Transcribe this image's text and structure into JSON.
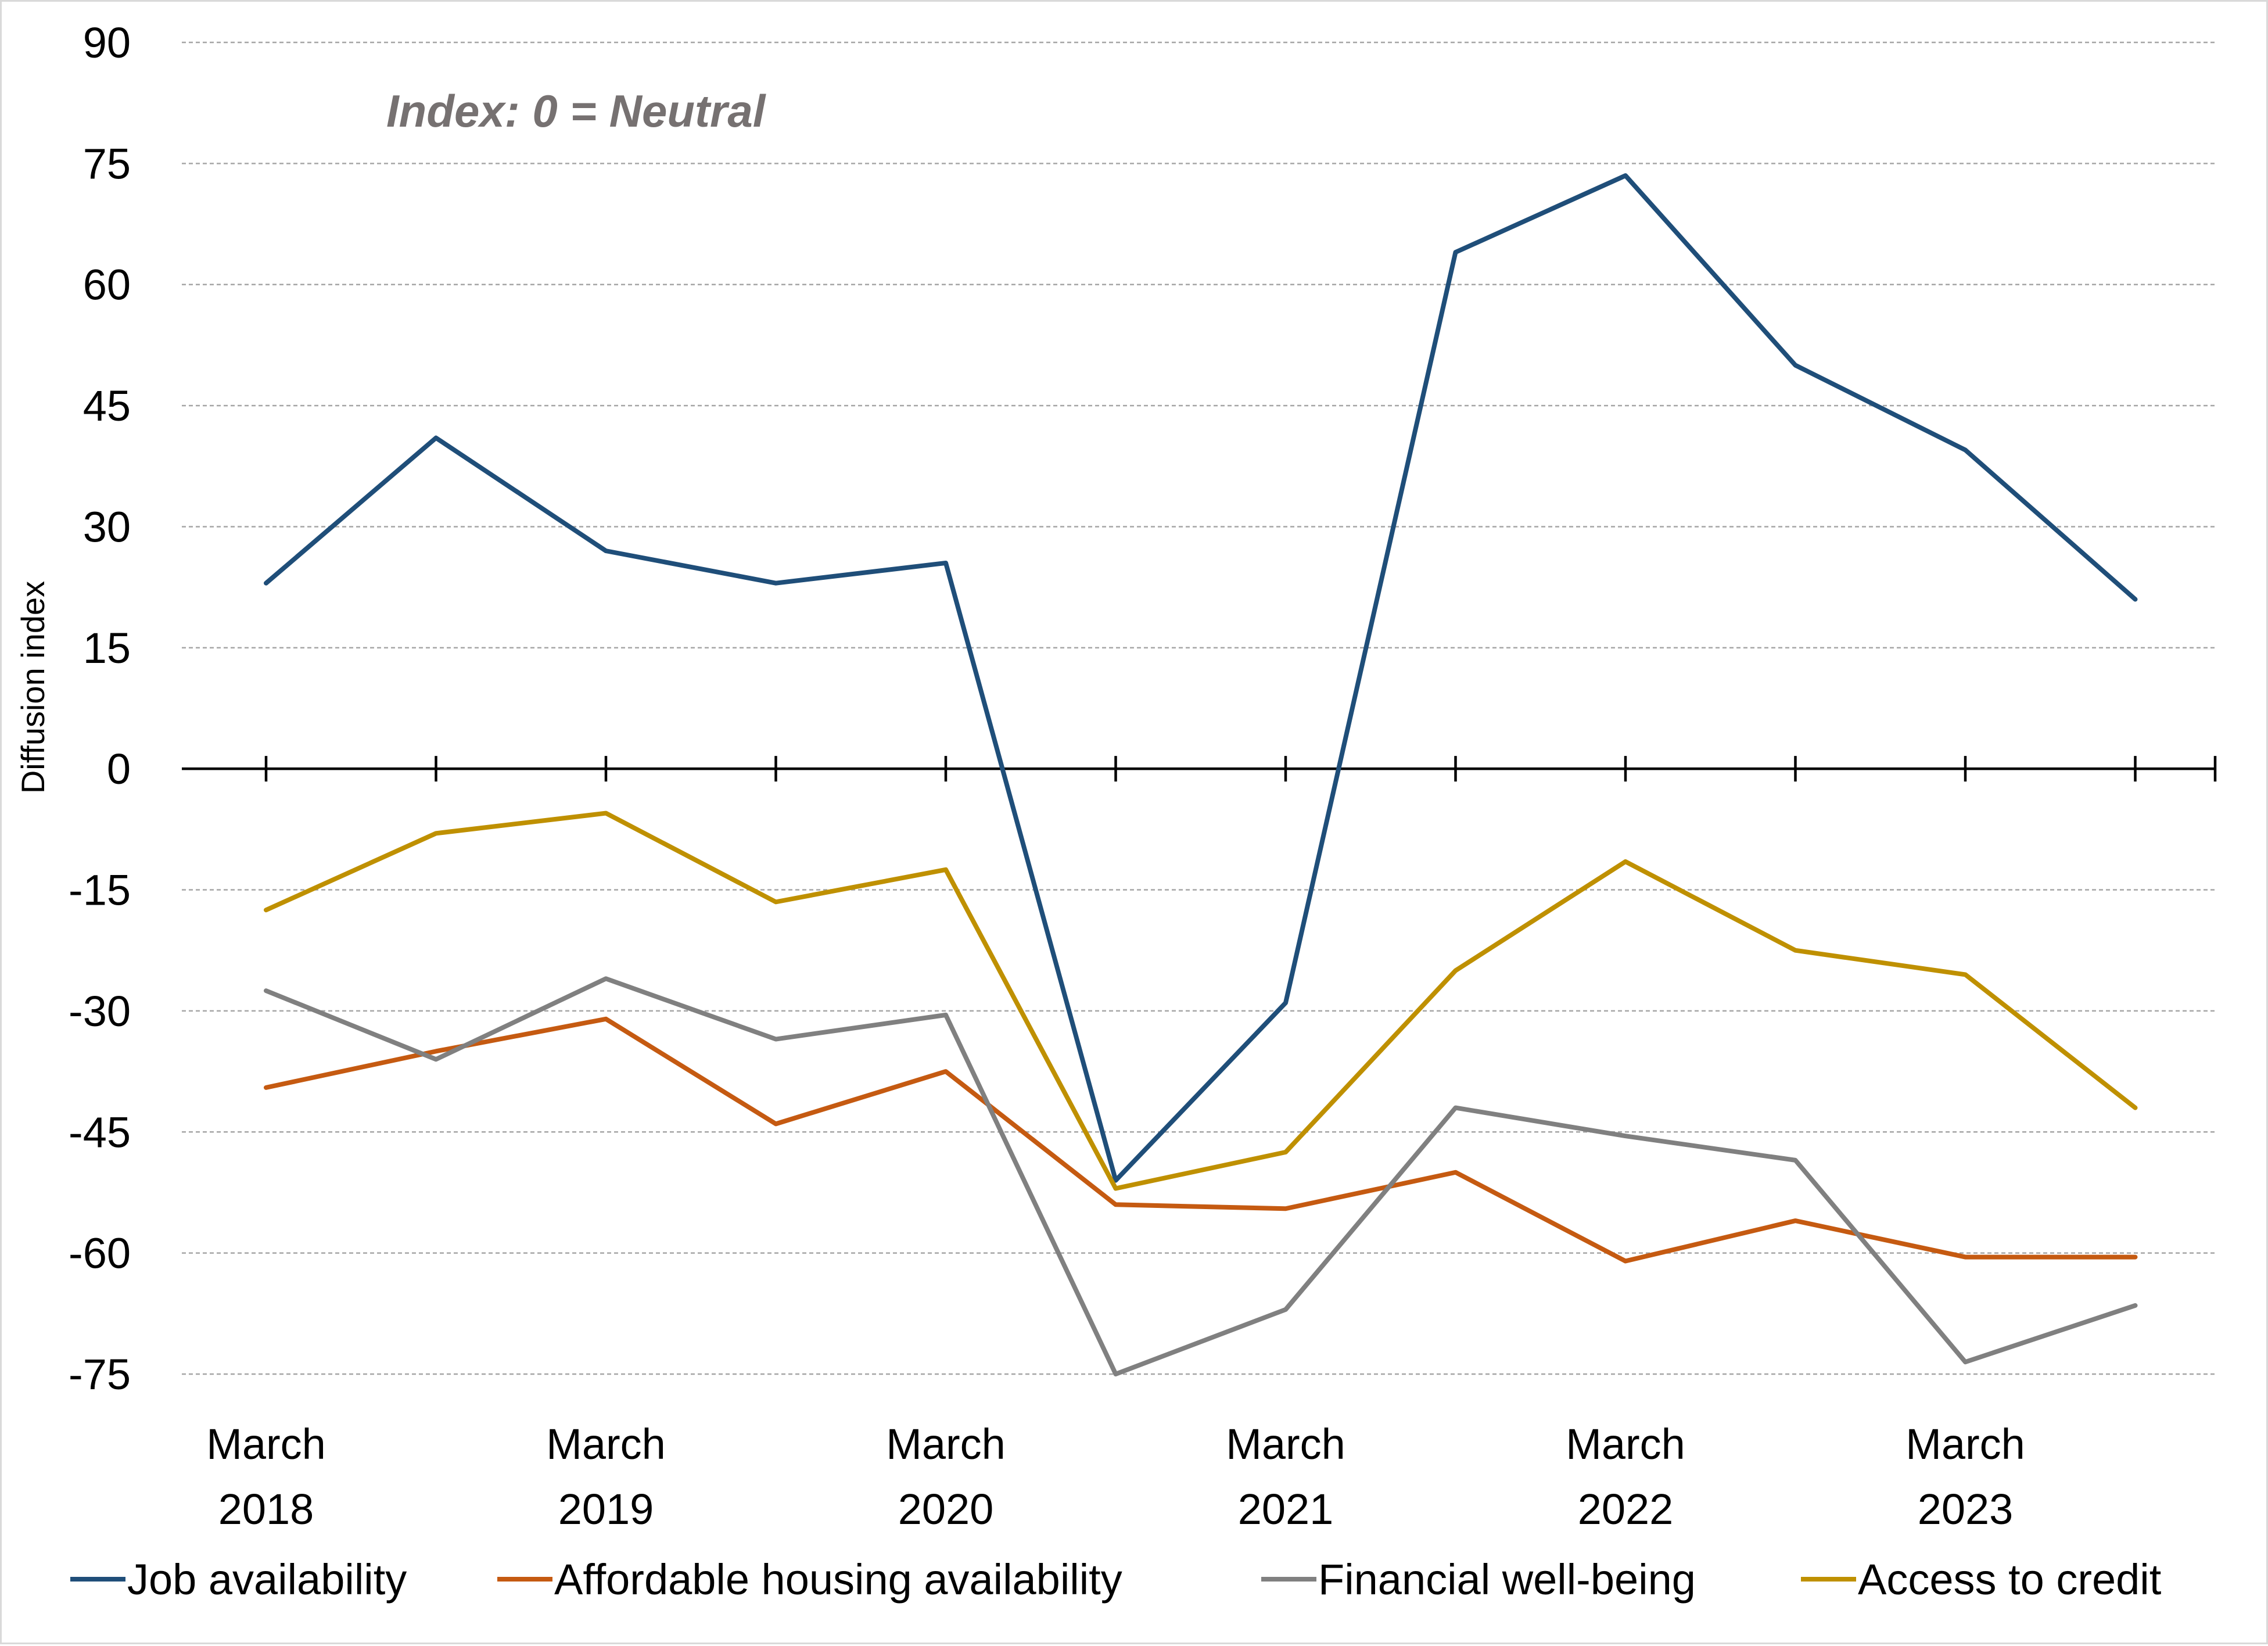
{
  "chart_data": {
    "type": "line",
    "title": "",
    "annotation": "Index: 0 = Neutral",
    "ylabel": "Diffusion index",
    "xlabel": "",
    "ylim": [
      -75,
      90
    ],
    "y_ticks": [
      90,
      75,
      60,
      45,
      30,
      15,
      0,
      -15,
      -30,
      -45,
      -60,
      -75
    ],
    "grid": true,
    "legend_position": "bottom",
    "x_labels": [
      {
        "line1": "March",
        "line2": "2018",
        "index": 0
      },
      {
        "line1": "March",
        "line2": "2019",
        "index": 2
      },
      {
        "line1": "March",
        "line2": "2020",
        "index": 4
      },
      {
        "line1": "March",
        "line2": "2021",
        "index": 6
      },
      {
        "line1": "March",
        "line2": "2022",
        "index": 8
      },
      {
        "line1": "March",
        "line2": "2023",
        "index": 10
      }
    ],
    "series": [
      {
        "name": "Job availability",
        "color": "#1f4e79",
        "values": [
          23,
          41,
          27,
          23,
          25.5,
          -51,
          -29,
          64,
          73.5,
          50,
          39.5,
          21
        ]
      },
      {
        "name": "Affordable housing availability",
        "color": "#c55a11",
        "values": [
          -39.5,
          -35,
          -31,
          -44,
          -37.5,
          -54,
          -54.5,
          -50,
          -61,
          -56,
          -60.5,
          -60.5
        ]
      },
      {
        "name": "Financial well-being",
        "color": "#808080",
        "values": [
          -27.5,
          -36,
          -26,
          -33.5,
          -30.5,
          -75,
          -67,
          -42,
          -45.5,
          -48.5,
          -73.5,
          -66.5
        ]
      },
      {
        "name": "Access to credit",
        "color": "#bf9000",
        "values": [
          -17.5,
          -8,
          -5.5,
          -16.5,
          -12.5,
          -52,
          -47.5,
          -25,
          -11.5,
          -22.5,
          -25.5,
          -42
        ]
      }
    ]
  }
}
